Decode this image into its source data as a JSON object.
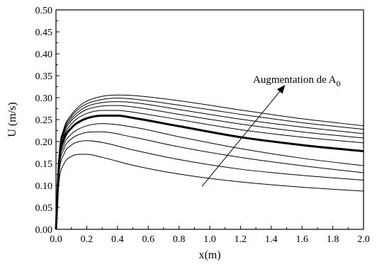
{
  "chart_data": {
    "type": "line",
    "title": "",
    "xlabel": "x(m)",
    "ylabel": "U (m/s)",
    "xlim": [
      0,
      2.0
    ],
    "ylim": [
      0,
      0.5
    ],
    "xticks": [
      "0.0",
      "0.2",
      "0.4",
      "0.6",
      "0.8",
      "1.0",
      "1.2",
      "1.4",
      "1.6",
      "1.8",
      "2.0"
    ],
    "yticks": [
      "0.00",
      "0.05",
      "0.10",
      "0.15",
      "0.20",
      "0.25",
      "0.30",
      "0.35",
      "0.40",
      "0.45",
      "0.50"
    ],
    "grid": false,
    "legend": "none",
    "annotation": {
      "text": "Augmentation de A",
      "subscript": "0",
      "arrow_from": [
        0.95,
        0.098
      ],
      "arrow_to": [
        3.37,
        0.329
      ]
    },
    "series": [
      {
        "bold": false,
        "values": [
          [
            0.0,
            0.0
          ],
          [
            0.02,
            0.109
          ],
          [
            0.05,
            0.148
          ],
          [
            0.1,
            0.166
          ],
          [
            0.15,
            0.171
          ],
          [
            0.2,
            0.171
          ],
          [
            0.3,
            0.164
          ],
          [
            0.5,
            0.146
          ],
          [
            0.8,
            0.126
          ],
          [
            1.2,
            0.108
          ],
          [
            1.6,
            0.096
          ],
          [
            2.0,
            0.087
          ]
        ]
      },
      {
        "bold": false,
        "values": [
          [
            0.0,
            0.0
          ],
          [
            0.02,
            0.126
          ],
          [
            0.05,
            0.17
          ],
          [
            0.1,
            0.192
          ],
          [
            0.15,
            0.2
          ],
          [
            0.2,
            0.202
          ],
          [
            0.3,
            0.198
          ],
          [
            0.5,
            0.181
          ],
          [
            0.8,
            0.159
          ],
          [
            1.2,
            0.137
          ],
          [
            1.6,
            0.123
          ],
          [
            2.0,
            0.112
          ]
        ]
      },
      {
        "bold": false,
        "values": [
          [
            0.0,
            0.0
          ],
          [
            0.02,
            0.135
          ],
          [
            0.05,
            0.182
          ],
          [
            0.1,
            0.206
          ],
          [
            0.15,
            0.216
          ],
          [
            0.2,
            0.221
          ],
          [
            0.3,
            0.222
          ],
          [
            0.5,
            0.21
          ],
          [
            0.8,
            0.188
          ],
          [
            1.2,
            0.164
          ],
          [
            1.6,
            0.145
          ],
          [
            2.0,
            0.129
          ]
        ]
      },
      {
        "bold": false,
        "values": [
          [
            0.0,
            0.0
          ],
          [
            0.02,
            0.142
          ],
          [
            0.05,
            0.191
          ],
          [
            0.1,
            0.217
          ],
          [
            0.15,
            0.229
          ],
          [
            0.2,
            0.236
          ],
          [
            0.3,
            0.241
          ],
          [
            0.5,
            0.233
          ],
          [
            0.8,
            0.211
          ],
          [
            1.2,
            0.184
          ],
          [
            1.6,
            0.162
          ],
          [
            2.0,
            0.145
          ]
        ]
      },
      {
        "bold": true,
        "values": [
          [
            0.0,
            0.0
          ],
          [
            0.02,
            0.151
          ],
          [
            0.05,
            0.203
          ],
          [
            0.1,
            0.231
          ],
          [
            0.15,
            0.245
          ],
          [
            0.2,
            0.253
          ],
          [
            0.3,
            0.259
          ],
          [
            0.4,
            0.259
          ],
          [
            0.5,
            0.254
          ],
          [
            0.8,
            0.235
          ],
          [
            1.2,
            0.21
          ],
          [
            1.6,
            0.192
          ],
          [
            2.0,
            0.178
          ]
        ]
      },
      {
        "bold": false,
        "values": [
          [
            0.0,
            0.0
          ],
          [
            0.02,
            0.156
          ],
          [
            0.05,
            0.21
          ],
          [
            0.1,
            0.24
          ],
          [
            0.15,
            0.255
          ],
          [
            0.2,
            0.264
          ],
          [
            0.3,
            0.271
          ],
          [
            0.4,
            0.271
          ],
          [
            0.5,
            0.267
          ],
          [
            0.8,
            0.25
          ],
          [
            1.2,
            0.227
          ],
          [
            1.6,
            0.21
          ],
          [
            2.0,
            0.197
          ]
        ]
      },
      {
        "bold": false,
        "values": [
          [
            0.0,
            0.0
          ],
          [
            0.02,
            0.16
          ],
          [
            0.05,
            0.216
          ],
          [
            0.1,
            0.247
          ],
          [
            0.15,
            0.263
          ],
          [
            0.2,
            0.273
          ],
          [
            0.3,
            0.281
          ],
          [
            0.4,
            0.282
          ],
          [
            0.5,
            0.279
          ],
          [
            0.8,
            0.262
          ],
          [
            1.2,
            0.24
          ],
          [
            1.6,
            0.222
          ],
          [
            2.0,
            0.208
          ]
        ]
      },
      {
        "bold": false,
        "values": [
          [
            0.0,
            0.0
          ],
          [
            0.02,
            0.163
          ],
          [
            0.05,
            0.22
          ],
          [
            0.1,
            0.252
          ],
          [
            0.15,
            0.269
          ],
          [
            0.2,
            0.28
          ],
          [
            0.3,
            0.289
          ],
          [
            0.4,
            0.291
          ],
          [
            0.5,
            0.289
          ],
          [
            0.8,
            0.273
          ],
          [
            1.2,
            0.251
          ],
          [
            1.6,
            0.233
          ],
          [
            2.0,
            0.218
          ]
        ]
      },
      {
        "bold": false,
        "values": [
          [
            0.0,
            0.0
          ],
          [
            0.02,
            0.166
          ],
          [
            0.05,
            0.224
          ],
          [
            0.1,
            0.257
          ],
          [
            0.15,
            0.275
          ],
          [
            0.2,
            0.286
          ],
          [
            0.3,
            0.296
          ],
          [
            0.4,
            0.299
          ],
          [
            0.5,
            0.297
          ],
          [
            0.8,
            0.283
          ],
          [
            1.2,
            0.262
          ],
          [
            1.6,
            0.243
          ],
          [
            2.0,
            0.228
          ]
        ]
      },
      {
        "bold": false,
        "values": [
          [
            0.0,
            0.0
          ],
          [
            0.02,
            0.168
          ],
          [
            0.05,
            0.228
          ],
          [
            0.1,
            0.261
          ],
          [
            0.15,
            0.28
          ],
          [
            0.2,
            0.292
          ],
          [
            0.3,
            0.303
          ],
          [
            0.4,
            0.306
          ],
          [
            0.5,
            0.305
          ],
          [
            0.8,
            0.293
          ],
          [
            1.2,
            0.272
          ],
          [
            1.6,
            0.252
          ],
          [
            2.0,
            0.236
          ]
        ]
      }
    ]
  }
}
